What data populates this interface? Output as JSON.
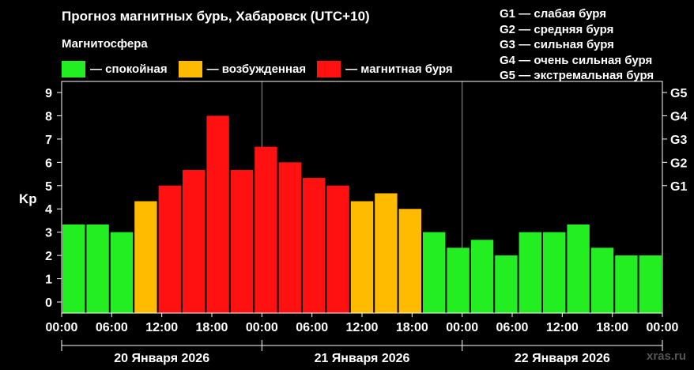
{
  "title": "Прогноз магнитных бурь, Хабаровск (UTC+10)",
  "legend": {
    "title": "Магнитосфера",
    "items": [
      {
        "label": "— спокойная",
        "color": "#22ee22"
      },
      {
        "label": "— возбужденная",
        "color": "#ffbb00"
      },
      {
        "label": "— магнитная буря",
        "color": "#ff1111"
      }
    ]
  },
  "gscale": [
    {
      "level": "G1",
      "label": "— слабая буря"
    },
    {
      "level": "G2",
      "label": "— средняя буря"
    },
    {
      "level": "G3",
      "label": "— сильная буря"
    },
    {
      "level": "G4",
      "label": "— очень сильная буря"
    },
    {
      "level": "G5",
      "label": "— экстремальная буря"
    }
  ],
  "watermark": "xras.ru",
  "chart_data": {
    "type": "bar",
    "ylabel": "Kp",
    "ylim": [
      0,
      9
    ],
    "yticks": [
      "0",
      "1",
      "2",
      "3",
      "4",
      "5",
      "6",
      "7",
      "8",
      "9"
    ],
    "right_ticks": [
      {
        "label": "G1",
        "value": 5
      },
      {
        "label": "G2",
        "value": 6
      },
      {
        "label": "G3",
        "value": 7
      },
      {
        "label": "G4",
        "value": 8
      },
      {
        "label": "G5",
        "value": 9
      }
    ],
    "xticks": [
      "00:00",
      "06:00",
      "12:00",
      "18:00",
      "00:00",
      "06:00",
      "12:00",
      "18:00",
      "00:00",
      "06:00",
      "12:00",
      "18:00",
      "00:00"
    ],
    "days": [
      "20 Января 2026",
      "21 Января 2026",
      "22 Января 2026"
    ],
    "colors": {
      "quiet": "#22ee22",
      "active": "#ffbb00",
      "storm": "#ff1111"
    },
    "values": [
      3.33,
      3.33,
      3.0,
      4.33,
      5.0,
      5.67,
      8.0,
      5.67,
      6.67,
      6.0,
      5.33,
      5.0,
      4.33,
      4.67,
      4.0,
      3.0,
      2.33,
      2.67,
      2.0,
      3.0,
      3.0,
      3.33,
      2.33,
      2.0,
      2.0
    ],
    "grid": false
  }
}
